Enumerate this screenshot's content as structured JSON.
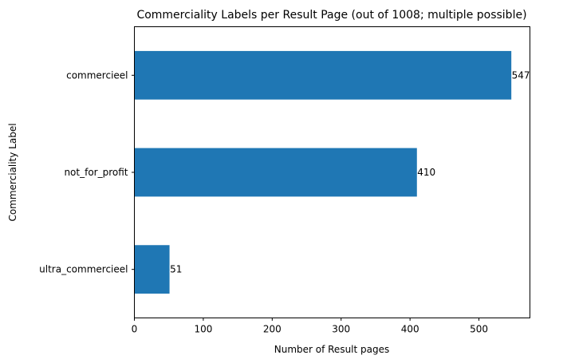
{
  "chart_data": {
    "type": "bar",
    "orientation": "horizontal",
    "title": "Commerciality Labels per Result Page (out of 1008; multiple possible)",
    "xlabel": "Number of Result pages",
    "ylabel": "Commerciality Label",
    "categories": [
      "commercieel",
      "not_for_profit",
      "ultra_commercieel"
    ],
    "values": [
      547,
      410,
      51
    ],
    "data_labels": [
      "547",
      "410",
      "51"
    ],
    "xlim": [
      0,
      574
    ],
    "xticks": [
      0,
      100,
      200,
      300,
      400,
      500
    ],
    "xtick_labels": [
      "0",
      "100",
      "200",
      "300",
      "400",
      "500"
    ],
    "grid": false,
    "bar_color": "#1f77b4"
  }
}
